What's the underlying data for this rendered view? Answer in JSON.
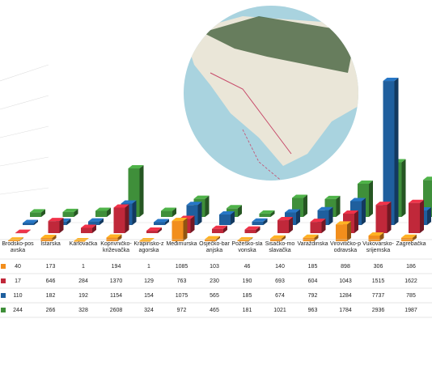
{
  "chart_data": {
    "type": "bar3d",
    "categories": [
      "Brodsko-posavska",
      "Istarska",
      "Karlovačka",
      "Koprivničko-križevačka",
      "Krapinsko-zagorska",
      "Međimurska",
      "Osječko-baranjska",
      "Požeško-slavonska",
      "Sisačko-moslavačka",
      "Varaždinska",
      "Virovitičko-podravska",
      "Vukovarsko-srijemska",
      "Zagrebačka"
    ],
    "series": [
      {
        "color": "#f28e1c",
        "values": [
          40,
          173,
          1,
          194,
          1,
          1085,
          103,
          46,
          140,
          185,
          898,
          306,
          186
        ]
      },
      {
        "color": "#c0283a",
        "values": [
          17,
          646,
          284,
          1370,
          129,
          763,
          230,
          190,
          693,
          604,
          1043,
          1515,
          1622
        ]
      },
      {
        "color": "#1f5f9e",
        "values": [
          110,
          182,
          192,
          1154,
          154,
          1075,
          565,
          185,
          674,
          792,
          1284,
          7737,
          785
        ]
      },
      {
        "color": "#3f8f3a",
        "values": [
          244,
          266,
          328,
          2608,
          324,
          972,
          465,
          181,
          1021,
          963,
          1784,
          2936,
          1987
        ]
      }
    ]
  }
}
